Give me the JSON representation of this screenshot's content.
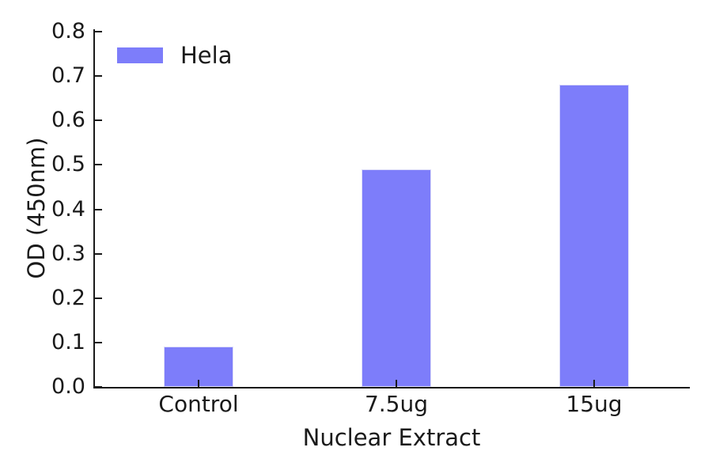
{
  "chart_data": {
    "type": "bar",
    "title": "",
    "xlabel": "Nuclear Extract",
    "ylabel": "OD (450nm)",
    "categories": [
      "Control",
      "7.5ug",
      "15ug"
    ],
    "series": [
      {
        "name": "Hela",
        "values": [
          0.09,
          0.49,
          0.68
        ]
      }
    ],
    "ylim": [
      0.0,
      0.8
    ],
    "ytick_labels": [
      "0.0",
      "0.1",
      "0.2",
      "0.3",
      "0.4",
      "0.5",
      "0.6",
      "0.7",
      "0.8"
    ],
    "grid": false,
    "legend": {
      "position": "upper-left",
      "items": [
        {
          "label": "Hela",
          "color": "#7d7dfa"
        }
      ]
    },
    "colors": {
      "bar": "#7d7dfa",
      "bar_edge": "#dcdcf8",
      "axis": "#1a1a1a",
      "text": "#1a1a1a",
      "background": "#ffffff"
    }
  }
}
